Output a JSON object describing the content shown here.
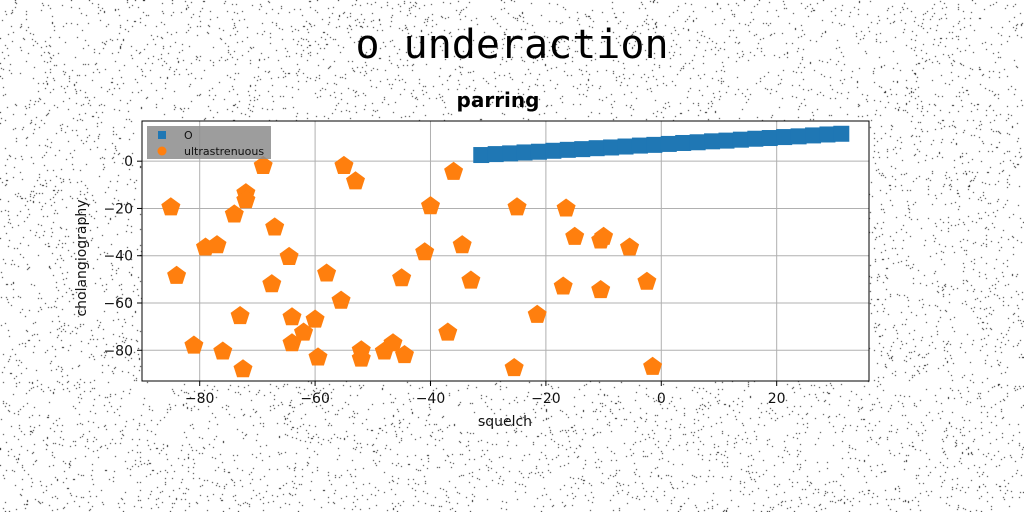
{
  "suptitle": "o underaction",
  "chart_data": {
    "type": "scatter",
    "title": "parring",
    "xlabel": "squelch",
    "ylabel": "cholangiography",
    "xlim": [
      -90,
      36
    ],
    "ylim": [
      -93,
      17
    ],
    "xticks": [
      -80,
      -60,
      -40,
      -20,
      0,
      20
    ],
    "yticks": [
      0,
      -20,
      -40,
      -60,
      -80
    ],
    "xtick_labels": [
      "−80",
      "−60",
      "−40",
      "−20",
      "0",
      "20"
    ],
    "ytick_labels": [
      "0",
      "−20",
      "−40",
      "−60",
      "−80"
    ],
    "grid": true,
    "legend_position": "top-left",
    "series": [
      {
        "name": "O",
        "marker": "square",
        "color": "#1f77b4",
        "x": [
          -31.2,
          -28.7,
          -26.2,
          -23.7,
          -21.2,
          -18.7,
          -16.2,
          -13.7,
          -11.2,
          -8.7,
          -6.2,
          -3.7,
          -1.2,
          1.3,
          3.8,
          6.3,
          8.8,
          11.3,
          13.8,
          16.3,
          18.8,
          21.3,
          23.8,
          26.3,
          28.8,
          31.2
        ],
        "y": [
          2.6,
          3.0,
          3.3,
          3.7,
          4.0,
          4.4,
          4.8,
          5.1,
          5.5,
          5.8,
          6.2,
          6.6,
          6.9,
          7.3,
          7.7,
          8.0,
          8.4,
          8.7,
          9.1,
          9.5,
          9.8,
          10.2,
          10.5,
          10.9,
          11.3,
          11.6
        ]
      },
      {
        "name": "ultrastrenuous",
        "marker": "pentagon",
        "color": "#ff7f0e",
        "x": [
          -85,
          -84,
          -81,
          -79,
          -77,
          -76,
          -74,
          -73,
          -72.5,
          -72,
          -72,
          -69,
          -67.5,
          -67,
          -64.5,
          -64,
          -64,
          -62,
          -60,
          -59.5,
          -58,
          -55.5,
          -55,
          -53,
          -52,
          -52,
          -48,
          -46.5,
          -45,
          -44.5,
          -41,
          -40,
          -37,
          -36,
          -34.5,
          -33,
          -25.5,
          -25,
          -21.5,
          -17,
          -16.5,
          -15,
          -10.5,
          -10.5,
          -10,
          -5.5,
          -2.5,
          -1.5
        ],
        "y": [
          -19.5,
          -48.5,
          -78,
          -36.5,
          -35.5,
          -80.5,
          -22.5,
          -65.5,
          -88,
          -13.5,
          -16.5,
          -2,
          -52,
          -28,
          -40.5,
          -66,
          -77,
          -72.5,
          -67,
          -83,
          -47.5,
          -59,
          -2,
          -8.5,
          -80,
          -83.5,
          -80.5,
          -77,
          -49.5,
          -82,
          -38.5,
          -19,
          -72.5,
          -4.5,
          -35.5,
          -50.5,
          -87.5,
          -19.5,
          -65,
          -53,
          -20,
          -32,
          -33.5,
          -54.5,
          -32,
          -36.5,
          -51,
          -87
        ]
      }
    ]
  }
}
